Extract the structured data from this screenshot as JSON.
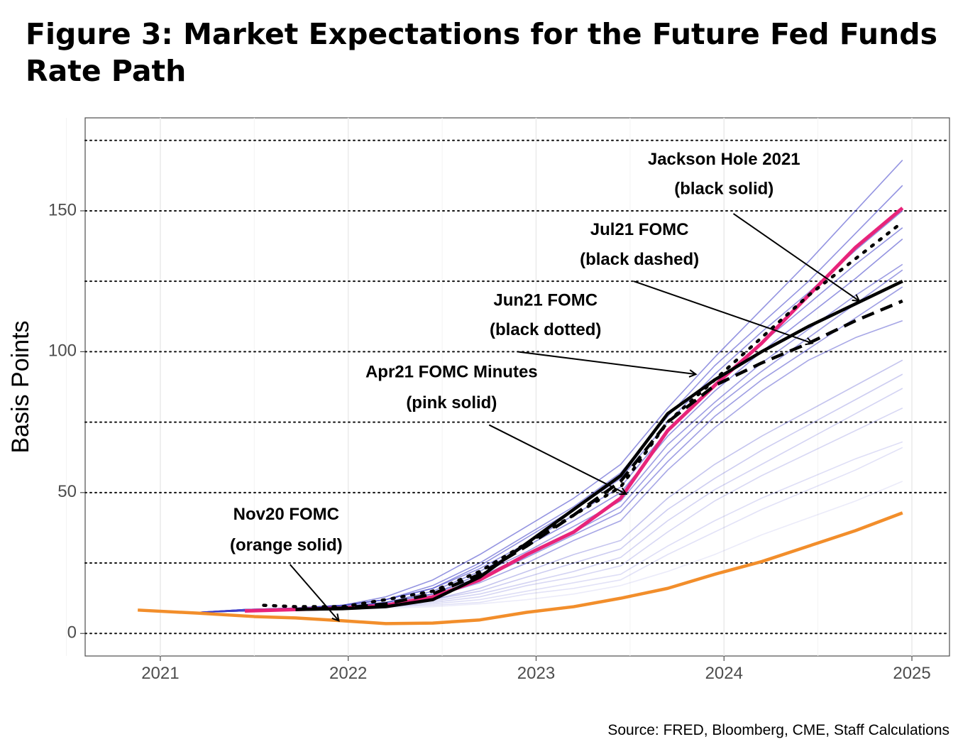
{
  "title": "Figure 3: Market Expectations for the Future Fed Funds Rate Path",
  "source": "Source: FRED, Bloomberg, CME, Staff Calculations",
  "chart_data": {
    "type": "line",
    "xlabel": "",
    "ylabel": "Basis Points",
    "xlim": [
      2020.6,
      2025.2
    ],
    "ylim": [
      -8,
      183
    ],
    "x_ticks": [
      2021,
      2022,
      2023,
      2024,
      2025
    ],
    "y_ticks": [
      0,
      50,
      100,
      150
    ],
    "reference_lines": [
      0,
      25,
      50,
      75,
      100,
      125,
      150,
      175
    ],
    "grid": "vertical",
    "series": [
      {
        "color": "#f28e2b",
        "width": 4.5,
        "dash": "solid",
        "x": [
          2020.88,
          2021.2,
          2021.5,
          2021.72,
          2021.97,
          2022.2,
          2022.45,
          2022.7,
          2022.95,
          2023.2,
          2023.45,
          2023.7,
          2023.95,
          2024.2,
          2024.45,
          2024.7,
          2024.95
        ],
        "y": [
          8.3,
          7.2,
          6,
          5.5,
          4.5,
          3.5,
          3.7,
          4.8,
          7.5,
          9.5,
          12.5,
          16,
          21,
          25.5,
          31,
          36.5,
          42.8
        ]
      },
      {
        "color": "#e8247a",
        "width": 5,
        "dash": "solid",
        "x": [
          2021.45,
          2021.72,
          2021.97,
          2022.2,
          2022.45,
          2022.7,
          2022.95,
          2023.2,
          2023.45,
          2023.7,
          2023.95,
          2024.2,
          2024.45,
          2024.7,
          2024.95
        ],
        "y": [
          8,
          8.5,
          9,
          10,
          13,
          19,
          28,
          36,
          48,
          72,
          88,
          103,
          120,
          137,
          151
        ]
      },
      {
        "color": "#000000",
        "width": 4.5,
        "dash": "dotted",
        "x": [
          2021.55,
          2021.72,
          2021.97,
          2022.2,
          2022.45,
          2022.7,
          2022.95,
          2023.2,
          2023.45,
          2023.7,
          2023.95,
          2024.2,
          2024.45,
          2024.7,
          2024.95
        ],
        "y": [
          10,
          9.5,
          9.5,
          12,
          15,
          22,
          32,
          42,
          52,
          75,
          90,
          105,
          120,
          133,
          146
        ]
      },
      {
        "color": "#000000",
        "width": 4.5,
        "dash": "dashed",
        "x": [
          2021.72,
          2021.97,
          2022.2,
          2022.45,
          2022.7,
          2022.95,
          2023.2,
          2023.45,
          2023.7,
          2023.95,
          2024.2,
          2024.45,
          2024.7,
          2024.95
        ],
        "y": [
          8.5,
          9,
          10.5,
          14,
          21,
          31,
          42,
          54,
          75,
          88,
          96,
          103,
          111,
          118
        ]
      },
      {
        "color": "#000000",
        "width": 4.5,
        "dash": "solid",
        "x": [
          2021.72,
          2021.97,
          2022.2,
          2022.45,
          2022.7,
          2022.95,
          2023.2,
          2023.45,
          2023.7,
          2023.95,
          2024.2,
          2024.45,
          2024.7,
          2024.95
        ],
        "y": [
          8.5,
          8.8,
          9.5,
          12,
          20,
          32,
          44,
          56,
          78,
          90,
          100,
          109,
          117,
          125
        ]
      }
    ],
    "background_paths": {
      "color": "#3c3cc8",
      "x": [
        2021.2,
        2021.45,
        2021.72,
        2021.97,
        2022.2,
        2022.45,
        2022.7,
        2022.95,
        2023.2,
        2023.45,
        2023.7,
        2023.95,
        2024.2,
        2024.45,
        2024.7,
        2024.95
      ],
      "paths": [
        {
          "opacity": 0.55,
          "y": [
            7.5,
            8.5,
            9,
            10,
            13,
            19,
            28,
            38,
            48,
            60,
            80,
            98,
            115,
            132,
            150,
            168
          ]
        },
        {
          "opacity": 0.55,
          "y": [
            7.5,
            8.5,
            9,
            10,
            12,
            17,
            25,
            35,
            45,
            57,
            77,
            95,
            110,
            125,
            142,
            159
          ]
        },
        {
          "opacity": 0.55,
          "y": [
            7.5,
            8.5,
            9,
            10,
            12,
            16,
            24,
            34,
            44,
            55,
            75,
            92,
            107,
            121,
            136,
            150
          ]
        },
        {
          "opacity": 0.55,
          "y": [
            7.5,
            8.5,
            9,
            10,
            12,
            16,
            23,
            32,
            42,
            52,
            72,
            88,
            103,
            117,
            131,
            144
          ]
        },
        {
          "opacity": 0.55,
          "y": [
            7.5,
            8.5,
            9,
            9.5,
            11,
            15,
            22,
            31,
            40,
            50,
            70,
            86,
            100,
            113,
            126,
            140
          ]
        },
        {
          "opacity": 0.5,
          "y": [
            7.5,
            8,
            8.5,
            9.5,
            11,
            14,
            21,
            29,
            38,
            47,
            67,
            82,
            96,
            108,
            120,
            131
          ]
        },
        {
          "opacity": 0.5,
          "y": [
            7.5,
            8,
            8.5,
            9.5,
            11,
            14,
            20,
            28,
            36,
            45,
            64,
            80,
            93,
            105,
            117,
            129
          ]
        },
        {
          "opacity": 0.5,
          "y": [
            7.5,
            8,
            8.5,
            9.5,
            10.5,
            13,
            19,
            27,
            35,
            43,
            61,
            77,
            90,
            101,
            112,
            123
          ]
        },
        {
          "opacity": 0.45,
          "y": [
            7.5,
            8,
            8.5,
            9,
            10.5,
            13,
            18,
            25,
            33,
            40,
            58,
            73,
            86,
            97,
            105,
            111
          ]
        },
        {
          "opacity": 0.3,
          "y": [
            7.5,
            8,
            8.5,
            9,
            10,
            12,
            16,
            22,
            28,
            33,
            48,
            60,
            70,
            79,
            88,
            97
          ]
        },
        {
          "opacity": 0.26,
          "y": [
            7.5,
            8,
            8.5,
            9,
            10,
            12,
            15,
            20,
            25,
            30,
            44,
            55,
            65,
            74,
            83,
            92
          ]
        },
        {
          "opacity": 0.22,
          "y": [
            7.5,
            8,
            8.5,
            9,
            10,
            11.5,
            14,
            18,
            22,
            27,
            40,
            51,
            60,
            69,
            78,
            87
          ]
        },
        {
          "opacity": 0.2,
          "y": [
            7.5,
            8,
            8.5,
            9,
            9.5,
            11,
            13,
            17,
            20,
            24,
            36,
            47,
            56,
            64,
            72,
            80
          ]
        },
        {
          "opacity": 0.17,
          "y": [
            7.5,
            8,
            8.5,
            9,
            9.5,
            10.5,
            12,
            15,
            18,
            21,
            31,
            40,
            48,
            55,
            62,
            68
          ]
        },
        {
          "opacity": 0.15,
          "y": [
            7.5,
            8,
            8.5,
            9,
            9.5,
            10,
            11,
            14,
            16,
            19,
            28,
            36,
            44,
            51,
            58,
            66
          ]
        },
        {
          "opacity": 0.1,
          "y": [
            7.5,
            8,
            8.5,
            8.5,
            9,
            9.5,
            10.5,
            12,
            14,
            17,
            22,
            28,
            35,
            41,
            47,
            54
          ]
        }
      ]
    },
    "annotations": [
      {
        "lines": [
          "Jackson Hole 2021",
          "(black solid)"
        ],
        "tx": 2024.0,
        "ty": [
          168,
          157.5
        ],
        "from": [
          2024.05,
          149
        ],
        "to": [
          2024.72,
          118
        ]
      },
      {
        "lines": [
          "Jul21 FOMC",
          "(black dashed)"
        ],
        "tx": 2023.55,
        "ty": [
          143,
          132.5
        ],
        "from": [
          2023.52,
          125
        ],
        "to": [
          2024.47,
          103
        ]
      },
      {
        "lines": [
          "Jun21 FOMC",
          "(black dotted)"
        ],
        "tx": 2023.05,
        "ty": [
          118,
          107.5
        ],
        "from": [
          2022.9,
          100
        ],
        "to": [
          2023.85,
          92
        ]
      },
      {
        "lines": [
          "Apr21 FOMC Minutes",
          "(pink solid)"
        ],
        "tx": 2022.55,
        "ty": [
          92.5,
          81.5
        ],
        "from": [
          2022.75,
          74
        ],
        "to": [
          2023.48,
          49.5
        ]
      },
      {
        "lines": [
          "Nov20 FOMC",
          "(orange solid)"
        ],
        "tx": 2021.67,
        "ty": [
          42,
          31
        ],
        "from": [
          2021.69,
          24.5
        ],
        "to": [
          2021.95,
          4.5
        ]
      }
    ]
  }
}
